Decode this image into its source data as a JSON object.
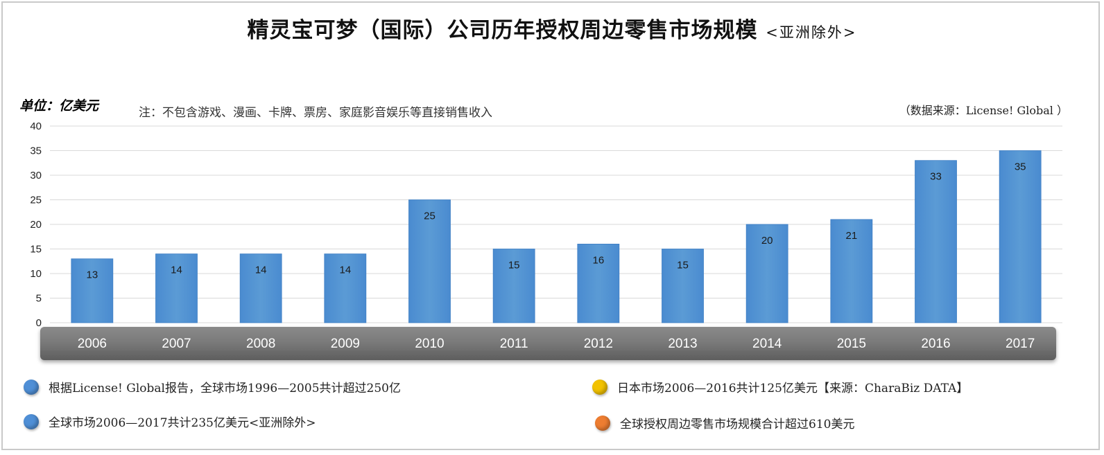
{
  "title": "精灵宝可梦（国际）公司历年授权周边零售市场规模",
  "subtitle": "<亚洲除外>",
  "unit_label": "单位：亿美元",
  "note": "注：不包含游戏、漫画、卡牌、票房、家庭影音娱乐等直接销售收入",
  "source": "（数据来源：License! Global ）",
  "chart_data": {
    "type": "bar",
    "categories": [
      "2006",
      "2007",
      "2008",
      "2009",
      "2010",
      "2011",
      "2012",
      "2013",
      "2014",
      "2015",
      "2016",
      "2017"
    ],
    "values": [
      13,
      14,
      14,
      14,
      25,
      15,
      16,
      15,
      20,
      21,
      33,
      35
    ],
    "y_ticks": [
      "0",
      "5",
      "10",
      "15",
      "20",
      "25",
      "30",
      "35",
      "40"
    ],
    "ylim": [
      0,
      40
    ],
    "grid": true,
    "bar_color": "#5b9bd5"
  },
  "footnotes": [
    {
      "text": "根据License! Global报告，全球市场1996—2005共计超过250亿",
      "color": "#4f8fd6"
    },
    {
      "text": "全球市场2006—2017共计235亿美元<亚洲除外>",
      "color": "#4f8fd6"
    },
    {
      "text": "日本市场2006—2016共计125亿美元【来源：CharaBiz DATA】",
      "color": "#f2c200"
    },
    {
      "text": "全球授权周边零售市场规模合计超过610美元",
      "color": "#ed7d31"
    }
  ]
}
